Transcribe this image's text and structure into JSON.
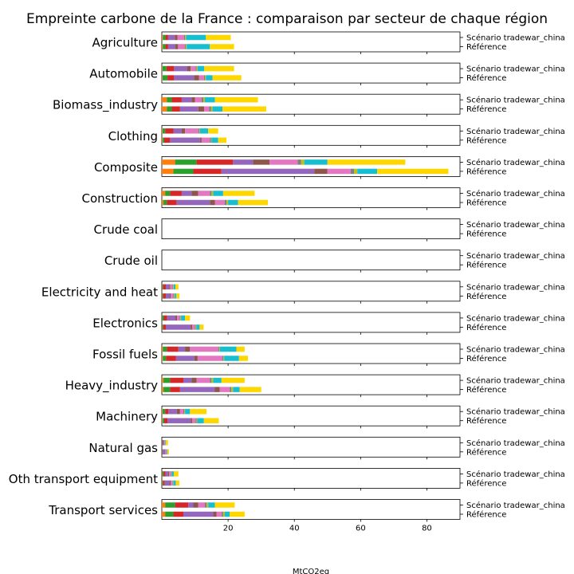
{
  "chart_data": {
    "type": "bar",
    "orientation": "horizontal",
    "stacked": true,
    "title": "Empreinte carbone de la France : comparaison par secteur de chaque région",
    "xlabel": "MtCO2eq",
    "ylabel": "",
    "xlim": [
      0,
      90
    ],
    "x_ticks": [
      20,
      40,
      60,
      80
    ],
    "grid": false,
    "legend": "none",
    "scenarios": [
      "Scénario tradewar_china",
      "Référence"
    ],
    "segment_colors": [
      "#ff7f0e",
      "#2ca02c",
      "#d62728",
      "#9467bd",
      "#8c564b",
      "#e377c2",
      "#7f7f7f",
      "#bcbd22",
      "#17becf",
      "#ffd700"
    ],
    "sectors": [
      {
        "name": "Agriculture",
        "bars": [
          [
            0.3,
            0.8,
            0.8,
            2.0,
            0.8,
            2.0,
            0.3,
            0.3,
            6.0,
            7.5
          ],
          [
            0.3,
            0.8,
            0.8,
            2.2,
            0.8,
            2.0,
            0.3,
            0.3,
            7.0,
            7.3
          ]
        ]
      },
      {
        "name": "Automobile",
        "bars": [
          [
            0.2,
            1.2,
            2.3,
            4.0,
            1.0,
            1.5,
            0.3,
            0.3,
            2.0,
            9.0
          ],
          [
            0.2,
            1.5,
            2.0,
            6.0,
            1.5,
            1.5,
            0.3,
            0.3,
            2.0,
            8.7
          ]
        ]
      },
      {
        "name": "Biomass_industry",
        "bars": [
          [
            1.5,
            1.5,
            3.0,
            3.0,
            1.0,
            2.0,
            0.5,
            0.5,
            3.0,
            13.0
          ],
          [
            1.5,
            1.5,
            2.5,
            5.5,
            1.8,
            1.5,
            0.5,
            0.5,
            3.0,
            13.2
          ]
        ]
      },
      {
        "name": "Clothing",
        "bars": [
          [
            0.2,
            0.8,
            2.5,
            2.5,
            1.0,
            4.0,
            0.3,
            0.2,
            2.5,
            3.0
          ],
          [
            0.2,
            0.5,
            1.8,
            9.0,
            0.5,
            2.5,
            0.3,
            0.2,
            2.0,
            2.5
          ]
        ]
      },
      {
        "name": "Composite",
        "bars": [
          [
            4.0,
            6.5,
            11.0,
            6.0,
            5.0,
            8.5,
            1.0,
            1.0,
            7.0,
            23.5
          ],
          [
            3.5,
            6.0,
            8.5,
            28.0,
            4.0,
            7.0,
            1.0,
            1.0,
            6.0,
            21.5
          ]
        ]
      },
      {
        "name": "Construction",
        "bars": [
          [
            1.0,
            1.5,
            3.5,
            3.0,
            2.0,
            3.5,
            0.5,
            0.5,
            3.0,
            9.5
          ],
          [
            0.5,
            1.0,
            3.0,
            10.0,
            1.5,
            3.0,
            0.5,
            0.5,
            3.0,
            9.0
          ]
        ]
      },
      {
        "name": "Crude coal",
        "bars": [
          [
            0,
            0,
            0,
            0,
            0,
            0,
            0,
            0,
            0,
            0
          ],
          [
            0,
            0,
            0,
            0,
            0,
            0,
            0,
            0,
            0,
            0
          ]
        ]
      },
      {
        "name": "Crude oil",
        "bars": [
          [
            0,
            0,
            0,
            0,
            0,
            0,
            0,
            0,
            0,
            0
          ],
          [
            0,
            0,
            0,
            0,
            0,
            0,
            0,
            0,
            0,
            0
          ]
        ]
      },
      {
        "name": "Electricity and heat",
        "bars": [
          [
            0.1,
            0.3,
            0.8,
            1.0,
            0.3,
            0.7,
            0.2,
            0.2,
            0.5,
            0.9
          ],
          [
            0.1,
            0.3,
            0.8,
            1.2,
            0.3,
            0.8,
            0.2,
            0.2,
            0.5,
            0.9
          ]
        ]
      },
      {
        "name": "Electronics",
        "bars": [
          [
            0.1,
            0.5,
            1.0,
            2.5,
            0.5,
            0.8,
            0.2,
            0.2,
            1.2,
            1.5
          ],
          [
            0.1,
            0.3,
            0.8,
            7.5,
            0.5,
            0.8,
            0.2,
            0.2,
            1.0,
            1.2
          ]
        ]
      },
      {
        "name": "Fossil fuels",
        "bars": [
          [
            0.3,
            1.2,
            3.5,
            2.0,
            1.5,
            8.5,
            0.3,
            0.2,
            5.0,
            2.5
          ],
          [
            0.3,
            1.0,
            3.0,
            5.5,
            1.0,
            7.5,
            0.3,
            0.2,
            4.5,
            2.7
          ]
        ]
      },
      {
        "name": "Heavy_industry",
        "bars": [
          [
            0.5,
            2.0,
            4.0,
            2.5,
            1.5,
            4.0,
            0.5,
            0.5,
            2.5,
            7.0
          ],
          [
            0.5,
            2.0,
            3.0,
            10.5,
            1.5,
            3.0,
            0.5,
            0.5,
            2.0,
            6.5
          ]
        ]
      },
      {
        "name": "Machinery",
        "bars": [
          [
            0.2,
            0.8,
            1.0,
            2.5,
            1.0,
            1.0,
            0.3,
            0.2,
            1.5,
            5.0
          ],
          [
            0.2,
            0.5,
            1.0,
            7.0,
            0.5,
            1.0,
            0.3,
            0.2,
            2.0,
            4.5
          ]
        ]
      },
      {
        "name": "Natural gas",
        "bars": [
          [
            0.05,
            0.1,
            0.2,
            0.3,
            0.1,
            0.2,
            0.05,
            0.05,
            0.2,
            0.6
          ],
          [
            0.05,
            0.1,
            0.1,
            0.8,
            0.1,
            0.3,
            0.05,
            0.05,
            0.2,
            0.4
          ]
        ]
      },
      {
        "name": "Oth transport equipment",
        "bars": [
          [
            0.1,
            0.4,
            0.6,
            0.8,
            0.3,
            0.6,
            0.1,
            0.1,
            0.6,
            1.4
          ],
          [
            0.1,
            0.3,
            0.5,
            1.5,
            0.3,
            0.6,
            0.1,
            0.1,
            0.7,
            1.1
          ]
        ]
      },
      {
        "name": "Transport services",
        "bars": [
          [
            1.0,
            3.0,
            4.0,
            1.5,
            1.5,
            2.0,
            0.5,
            0.5,
            2.0,
            6.0
          ],
          [
            1.0,
            2.5,
            3.0,
            9.0,
            1.0,
            1.5,
            0.5,
            0.5,
            1.5,
            4.5
          ]
        ]
      }
    ]
  }
}
